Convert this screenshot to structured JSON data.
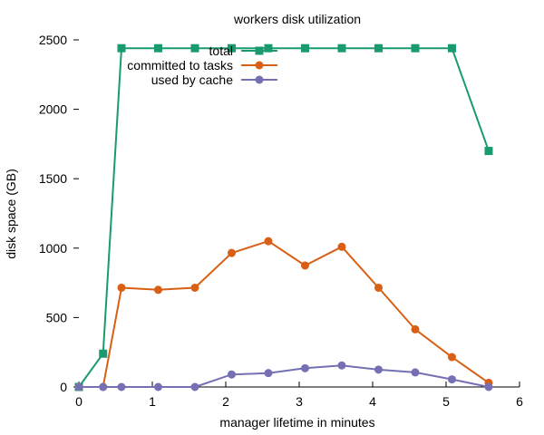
{
  "chart_data": {
    "type": "line",
    "title": "workers disk utilization",
    "xlabel": "manager lifetime in minutes",
    "ylabel": "disk space (GB)",
    "xlim": [
      0,
      6
    ],
    "ylim": [
      0,
      2500
    ],
    "xticks": [
      0,
      1,
      2,
      3,
      4,
      5,
      6
    ],
    "yticks": [
      0,
      500,
      1000,
      1500,
      2000,
      2500
    ],
    "xtick_labels": [
      "0",
      "1",
      "2",
      "3",
      "4",
      "5",
      "6"
    ],
    "ytick_labels": [
      "0",
      "500",
      "1000",
      "1500",
      "2000",
      "2500"
    ],
    "grid": false,
    "legend_position": "top-left",
    "series": [
      {
        "name": "total",
        "color": "#1a9a70",
        "marker": "square",
        "x": [
          0.0,
          0.33,
          0.58,
          1.08,
          1.58,
          2.08,
          2.58,
          3.08,
          3.58,
          4.08,
          4.58,
          5.08,
          5.58
        ],
        "y": [
          0,
          240,
          2440,
          2440,
          2440,
          2440,
          2440,
          2440,
          2440,
          2440,
          2440,
          2440,
          1700
        ]
      },
      {
        "name": "committed to tasks",
        "color": "#d85f14",
        "marker": "circle",
        "x": [
          0.0,
          0.33,
          0.58,
          1.08,
          1.58,
          2.08,
          2.58,
          3.08,
          3.58,
          4.08,
          4.58,
          5.08,
          5.58
        ],
        "y": [
          0,
          0,
          715,
          700,
          715,
          965,
          1050,
          875,
          1010,
          715,
          415,
          215,
          30
        ]
      },
      {
        "name": "used by cache",
        "color": "#7570b3",
        "marker": "circle",
        "x": [
          0.0,
          0.33,
          0.58,
          1.08,
          1.58,
          2.08,
          2.58,
          3.08,
          3.58,
          4.08,
          4.58,
          5.08,
          5.58
        ],
        "y": [
          0,
          0,
          0,
          0,
          0,
          90,
          100,
          135,
          155,
          125,
          105,
          55,
          0
        ]
      }
    ]
  }
}
